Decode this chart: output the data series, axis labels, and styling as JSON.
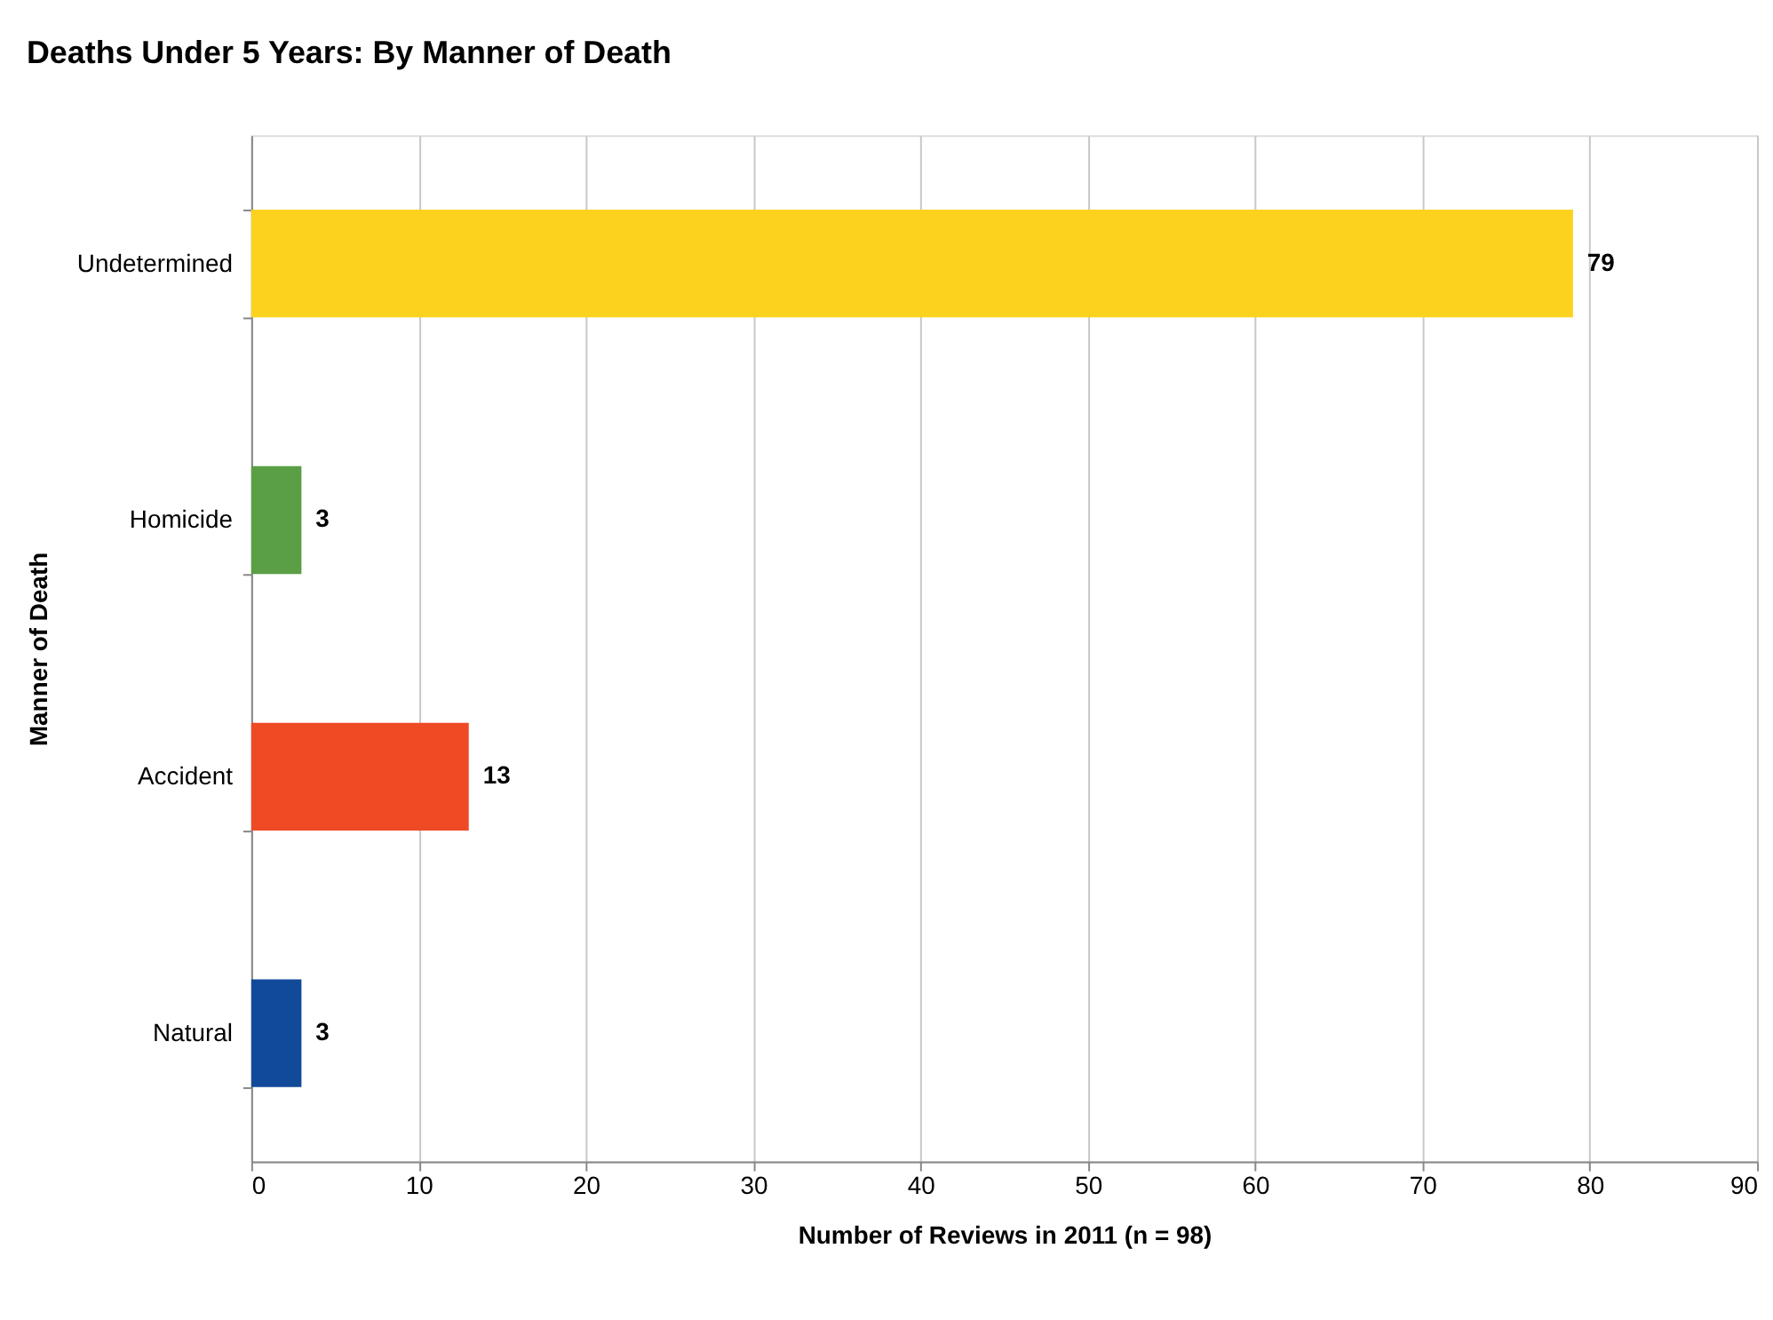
{
  "chart_data": {
    "type": "bar",
    "orientation": "horizontal",
    "title": "Deaths Under 5 Years:  By Manner of Death",
    "xlabel": "Number of Reviews in 2011 (n = 98)",
    "ylabel": "Manner of Death",
    "categories": [
      "Undetermined",
      "Homicide",
      "Accident",
      "Natural"
    ],
    "values": [
      79,
      3,
      13,
      3
    ],
    "colors": [
      "#fcd21e",
      "#5a9e46",
      "#ee4a24",
      "#124a9a"
    ],
    "xlim": [
      0,
      90
    ],
    "xticks": [
      0,
      10,
      20,
      30,
      40,
      50,
      60,
      70,
      80,
      90
    ],
    "grid": "x",
    "data_labels": true
  }
}
